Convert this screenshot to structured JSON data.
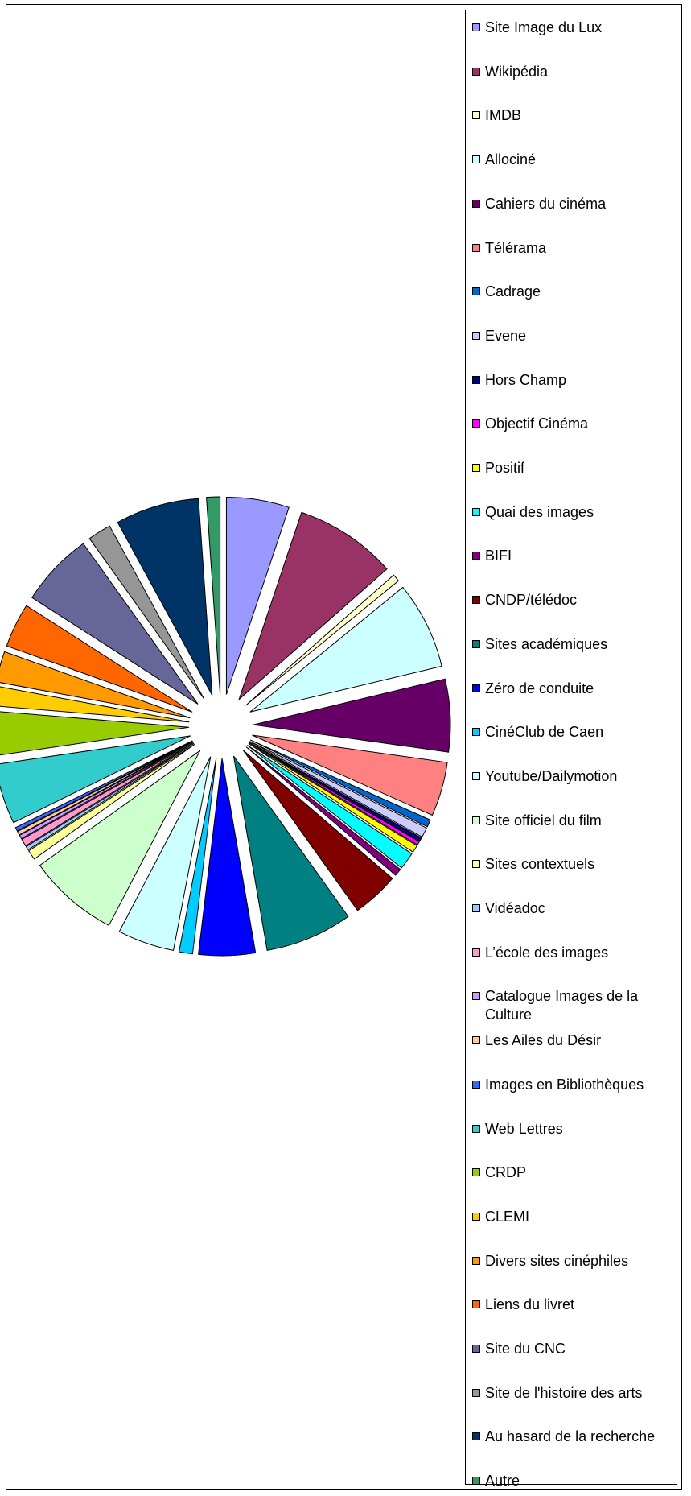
{
  "chart_data": {
    "type": "pie",
    "exploded": true,
    "series": [
      {
        "label": "Site Image du Lux",
        "value": 5.1,
        "color": "#9999ff"
      },
      {
        "label": "Wikipédia",
        "value": 8.3,
        "color": "#993366"
      },
      {
        "label": "IMDB",
        "value": 0.6,
        "color": "#ffffcc"
      },
      {
        "label": "Allociné",
        "value": 7.1,
        "color": "#ccffff"
      },
      {
        "label": "Cahiers du cinéma",
        "value": 5.9,
        "color": "#660066"
      },
      {
        "label": "Télérama",
        "value": 4.4,
        "color": "#ff8080"
      },
      {
        "label": "Cadrage",
        "value": 0.6,
        "color": "#0066cc"
      },
      {
        "label": "Evene",
        "value": 0.8,
        "color": "#ccccff"
      },
      {
        "label": "Hors Champ",
        "value": 0.3,
        "color": "#000080"
      },
      {
        "label": "Objectif Cinéma",
        "value": 0.3,
        "color": "#ff00ff"
      },
      {
        "label": "Positif",
        "value": 0.6,
        "color": "#ffff00"
      },
      {
        "label": "Quai des images",
        "value": 1.4,
        "color": "#00ffff"
      },
      {
        "label": "BIFI",
        "value": 0.6,
        "color": "#800080"
      },
      {
        "label": "CNDP/télédoc",
        "value": 3.8,
        "color": "#800000"
      },
      {
        "label": "Sites académiques",
        "value": 7.1,
        "color": "#008080"
      },
      {
        "label": "Zéro de conduite",
        "value": 4.6,
        "color": "#0000ff"
      },
      {
        "label": "CinéClub de Caen",
        "value": 1.1,
        "color": "#00ccff"
      },
      {
        "label": "Youtube/Dailymotion",
        "value": 4.6,
        "color": "#ccffff"
      },
      {
        "label": "Site officiel du film",
        "value": 7.4,
        "color": "#ccffcc"
      },
      {
        "label": "Sites contextuels",
        "value": 0.8,
        "color": "#ffff99"
      },
      {
        "label": "Vidéadoc",
        "value": 0.3,
        "color": "#99ccff"
      },
      {
        "label": "L’école des images",
        "value": 0.6,
        "color": "#ff99cc"
      },
      {
        "label": "Catalogue Images de la Culture",
        "value": 0.3,
        "color": "#cc99ff"
      },
      {
        "label": "Les Ailes du Désir",
        "value": 0.3,
        "color": "#ffcc99"
      },
      {
        "label": "Images en Bibliothèques",
        "value": 0.3,
        "color": "#3366ff"
      },
      {
        "label": "Web Lettres",
        "value": 4.9,
        "color": "#33cccc"
      },
      {
        "label": "CRDP",
        "value": 3.6,
        "color": "#99cc00"
      },
      {
        "label": "CLEMI",
        "value": 1.6,
        "color": "#ffcc00"
      },
      {
        "label": "Divers sites cinéphiles",
        "value": 2.5,
        "color": "#ff9900"
      },
      {
        "label": "Liens du livret",
        "value": 3.6,
        "color": "#ff6600"
      },
      {
        "label": "Site du CNC",
        "value": 6.0,
        "color": "#666699"
      },
      {
        "label": "Site de l'histoire des arts",
        "value": 1.9,
        "color": "#969696"
      },
      {
        "label": "Au hasard de la recherche",
        "value": 6.8,
        "color": "#003366"
      },
      {
        "label": "Autre",
        "value": 1.1,
        "color": "#339966"
      }
    ]
  }
}
